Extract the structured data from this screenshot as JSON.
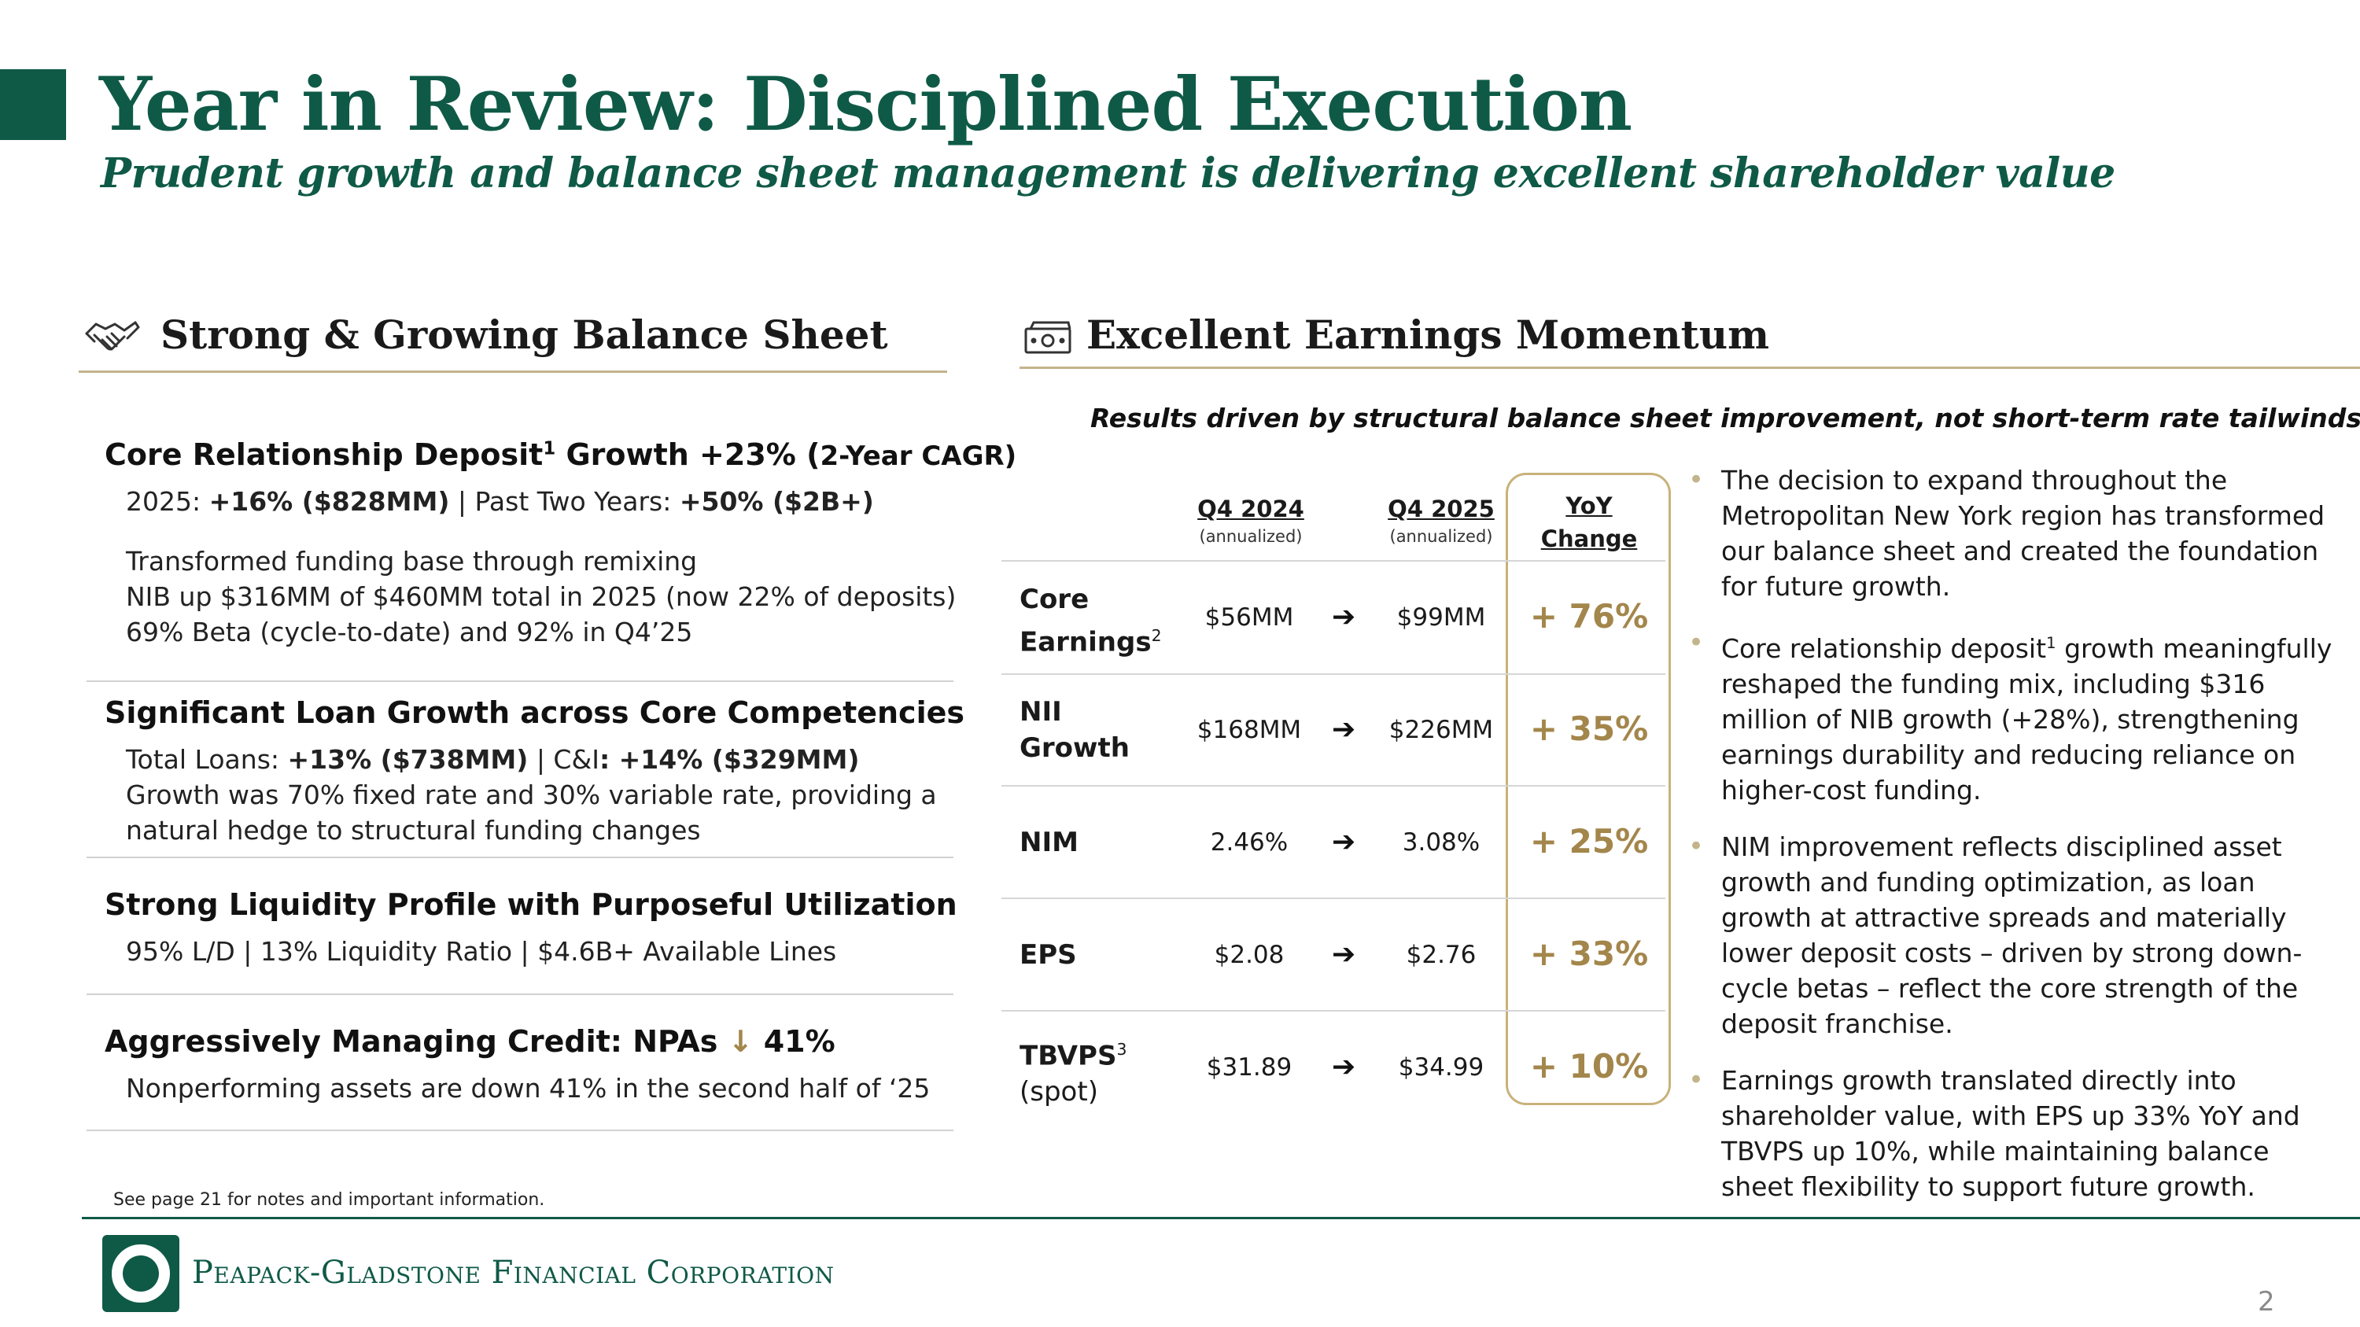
{
  "header": {
    "title": "Year in Review: Disciplined Execution",
    "subtitle": "Prudent growth and balance sheet management is delivering excellent shareholder value"
  },
  "left": {
    "heading": "Strong & Growing Balance Sheet",
    "icon": "handshake-icon",
    "s1": {
      "h_a": "Core Relationship Deposit",
      "h_sup": "1",
      "h_b": " Growth +23% (",
      "h_c": "2-Year CAGR)",
      "l1_a": "2025: ",
      "l1_b": "+16% ($828MM)",
      "l1_c": " | Past Two Years: ",
      "l1_d": "+50% ($2B+)",
      "l2": "Transformed funding base through remixing",
      "l3": "NIB up $316MM of $460MM total in 2025 (now 22% of deposits)",
      "l4": "69% Beta (cycle-to-date) and 92% in Q4’25"
    },
    "s2": {
      "h": "Significant Loan Growth across Core Competencies",
      "l1_a": "Total Loans: ",
      "l1_b": "+13% ($738MM)",
      "l1_c": " | C&I",
      "l1_d": ": +14% ($329MM)",
      "l2": "Growth was 70% fixed rate and 30% variable rate, providing a",
      "l3": "natural hedge to structural funding changes"
    },
    "s3": {
      "h": "Strong Liquidity Profile with Purposeful Utilization",
      "l1": "95% L/D | 13% Liquidity Ratio | $4.6B+ Available Lines"
    },
    "s4": {
      "h_a": "Aggressively Managing Credit: NPAs ",
      "h_arrow": "↓",
      "h_b": " 41%",
      "l1": "Nonperforming assets are down 41% in the second half of ‘25"
    },
    "footnote": "See page 21 for notes and important information."
  },
  "right": {
    "heading": "Excellent Earnings Momentum",
    "icon": "cash-icon",
    "tagline": "Results driven by structural balance sheet improvement, not short-term rate tailwinds.",
    "table": {
      "col1": "Q4 2024",
      "col1_sub": "(annualized)",
      "col2": "Q4 2025",
      "col2_sub": "(annualized)",
      "col3_a": "YoY",
      "col3_b": "Change",
      "arrow": "➔",
      "rows": [
        {
          "l1": "Core",
          "l2": "Earnings",
          "sup": "2",
          "v1": "$56MM",
          "v2": "$99MM",
          "yoy": "+ 76%"
        },
        {
          "l1": "NII",
          "l2": "Growth",
          "v1": "$168MM",
          "v2": "$226MM",
          "yoy": "+ 35%"
        },
        {
          "l1": "NIM",
          "v1": "2.46%",
          "v2": "3.08%",
          "yoy": "+ 25%"
        },
        {
          "l1": "EPS",
          "v1": "$2.08",
          "v2": "$2.76",
          "yoy": "+ 33%"
        },
        {
          "l1": "TBVPS",
          "sup": "3",
          "l2": "(spot)",
          "v1": "$31.89",
          "v2": "$34.99",
          "yoy": "+ 10%"
        }
      ]
    },
    "bullets": {
      "b1": "The decision to expand throughout the Metropolitan New York region has transformed our balance sheet and created the foundation for future growth.",
      "b2_a": "Core relationship deposit",
      "b2_sup": "1",
      "b2_b": " growth meaningfully reshaped the funding mix, including $316 million of NIB growth (+28%), strengthening earnings durability and reducing reliance on higher-cost funding.",
      "b3": "NIM improvement reflects disciplined asset growth and funding optimization, as loan growth at attractive spreads and materially lower deposit costs – driven by strong down-cycle betas – reflect the core strength of the deposit franchise.",
      "b4": "Earnings growth translated directly into shareholder value, with EPS up 33% YoY and TBVPS up 10%, while maintaining balance sheet flexibility to support future growth."
    }
  },
  "footer": {
    "company": "Peapack-Gladstone Financial Corporation",
    "page": "2"
  }
}
